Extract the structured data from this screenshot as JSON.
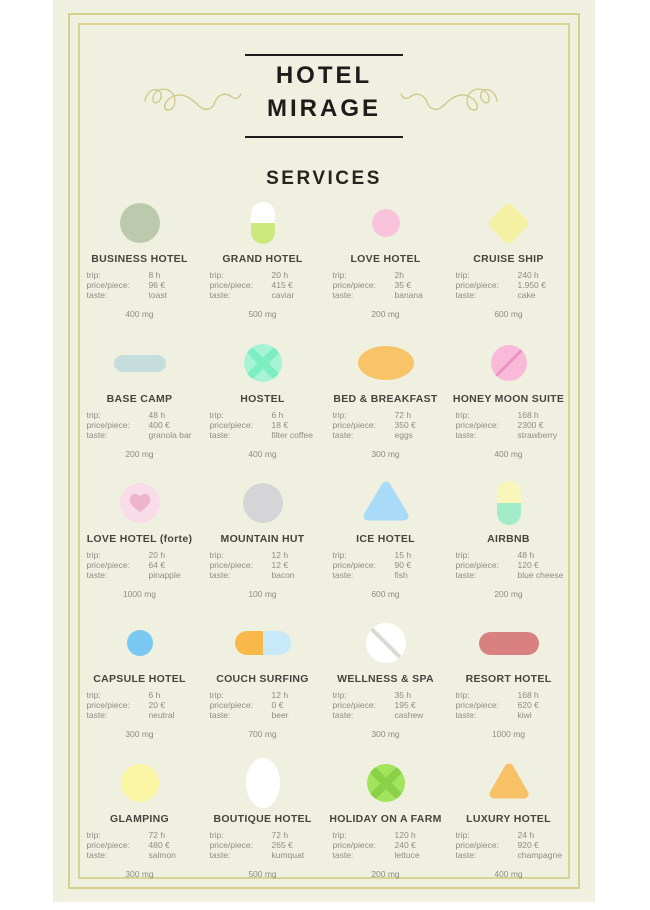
{
  "page": {
    "background": "#ffffff",
    "poster_background": "#f0f0e1",
    "frame_color_outer": "#d4d08d",
    "frame_color_inner": "#d8d494",
    "squiggle_color": "#cfca8b"
  },
  "header": {
    "title_line1": "HOTEL",
    "title_line2": "MIRAGE",
    "services_heading": "SERVICES"
  },
  "detail_labels": {
    "trip": "trip:",
    "price": "price/piece:",
    "taste": "taste:"
  },
  "services": {
    "items": [
      {
        "name": "BUSINESS HOTEL",
        "trip": "8 h",
        "price": "96 €",
        "taste": "toast",
        "dose": "400 mg",
        "shape": {
          "kind": "circle",
          "d": 40,
          "color": "#bcc9ad"
        }
      },
      {
        "name": "GRAND HOTEL",
        "trip": "20 h",
        "price": "415 €",
        "taste": "caviar",
        "dose": "500 mg",
        "shape": {
          "kind": "capsule-v",
          "w": 24,
          "h": 42,
          "top": "#ffffff",
          "bottom": "#cbe97e"
        }
      },
      {
        "name": "LOVE HOTEL",
        "trip": "2h",
        "price": "35 €",
        "taste": "banana",
        "dose": "200 mg",
        "shape": {
          "kind": "circle",
          "d": 28,
          "color": "#f9c3dc"
        }
      },
      {
        "name": "CRUISE SHIP",
        "trip": "240 h",
        "price": "1.950 €",
        "taste": "cake",
        "dose": "600 mg",
        "shape": {
          "kind": "diamond",
          "d": 42,
          "inner": 31,
          "color": "#f4f1a2"
        }
      },
      {
        "name": "BASE CAMP",
        "trip": "48 h",
        "price": "400 €",
        "taste": "granola bar",
        "dose": "200 mg",
        "shape": {
          "kind": "pill-h",
          "w": 52,
          "h": 17,
          "color": "#c5dddc"
        }
      },
      {
        "name": "HOSTEL",
        "trip": "6 h",
        "price": "18 €",
        "taste": "filter coffee",
        "dose": "400 mg",
        "shape": {
          "kind": "circle-x",
          "d": 38,
          "color": "#a8f3d6",
          "cross": "#7deec2"
        }
      },
      {
        "name": "BED & BREAKFAST",
        "trip": "72 h",
        "price": "350 €",
        "taste": "eggs",
        "dose": "300 mg",
        "shape": {
          "kind": "ellipse",
          "w": 56,
          "h": 34,
          "color": "#f9c368"
        }
      },
      {
        "name": "HONEY MOON SUITE",
        "trip": "168 h",
        "price": "2300 €",
        "taste": "strawberry",
        "dose": "400 mg",
        "shape": {
          "kind": "circle-line",
          "d": 36,
          "color": "#f9bada",
          "line": "#ef8fc2",
          "angle": -45
        }
      },
      {
        "name": "LOVE HOTEL (forte)",
        "trip": "20 h",
        "price": "64 €",
        "taste": "pinapple",
        "dose": "1000 mg",
        "shape": {
          "kind": "circle-heart",
          "d": 40,
          "color": "#f8dce8",
          "heart": "#eeb4cb"
        }
      },
      {
        "name": "MOUNTAIN HUT",
        "trip": "12 h",
        "price": "12 €",
        "taste": "bacon",
        "dose": "100 mg",
        "shape": {
          "kind": "circle",
          "d": 40,
          "color": "#d5d5d8"
        }
      },
      {
        "name": "ICE HOTEL",
        "trip": "15 h",
        "price": "90 €",
        "taste": "fish",
        "dose": "600 mg",
        "shape": {
          "kind": "triangle",
          "w": 48,
          "h": 40,
          "color": "#a9daf8"
        }
      },
      {
        "name": "AIRBNB",
        "trip": "48 h",
        "price": "120 €",
        "taste": "blue cheese",
        "dose": "200 mg",
        "shape": {
          "kind": "capsule-v",
          "w": 24,
          "h": 44,
          "top": "#f9f5bb",
          "bottom": "#a3ecca"
        }
      },
      {
        "name": "CAPSULE HOTEL",
        "trip": "6 h",
        "price": "20 €",
        "taste": "neutral",
        "dose": "300 mg",
        "shape": {
          "kind": "circle",
          "d": 26,
          "color": "#79c8f1"
        }
      },
      {
        "name": "COUCH SURFING",
        "trip": "12 h",
        "price": "0 €",
        "taste": "beer",
        "dose": "700 mg",
        "shape": {
          "kind": "capsule-h",
          "w": 56,
          "h": 24,
          "left": "#f9b94a",
          "right": "#c8e9f9"
        }
      },
      {
        "name": "WELLNESS & SPA",
        "trip": "35 h",
        "price": "195 €",
        "taste": "cashew",
        "dose": "300 mg",
        "shape": {
          "kind": "circle-line",
          "d": 40,
          "color": "#ffffff",
          "line": "#d9d9d5",
          "angle": 45
        }
      },
      {
        "name": "RESORT HOTEL",
        "trip": "168 h",
        "price": "620 €",
        "taste": "kiwi",
        "dose": "1000 mg",
        "shape": {
          "kind": "pill-h",
          "w": 60,
          "h": 23,
          "color": "#d98080"
        }
      },
      {
        "name": "GLAMPING",
        "trip": "72 h",
        "price": "480 €",
        "taste": "salmon",
        "dose": "300 mg",
        "shape": {
          "kind": "circle",
          "d": 38,
          "color": "#faf6a4"
        }
      },
      {
        "name": "BOUTIQUE HOTEL",
        "trip": "72 h",
        "price": "265 €",
        "taste": "kumquat",
        "dose": "500 mg",
        "shape": {
          "kind": "ellipse",
          "w": 34,
          "h": 50,
          "color": "#ffffff"
        }
      },
      {
        "name": "HOLIDAY ON A FARM",
        "trip": "120 h",
        "price": "240 €",
        "taste": "lettuce",
        "dose": "200 mg",
        "shape": {
          "kind": "circle-x",
          "d": 38,
          "color": "#a2e45c",
          "cross": "#8bd148"
        }
      },
      {
        "name": "LUXURY HOTEL",
        "trip": "24 h",
        "price": "920 €",
        "taste": "champagne",
        "dose": "400 mg",
        "shape": {
          "kind": "triangle",
          "w": 42,
          "h": 36,
          "color": "#f9c165"
        }
      }
    ]
  }
}
